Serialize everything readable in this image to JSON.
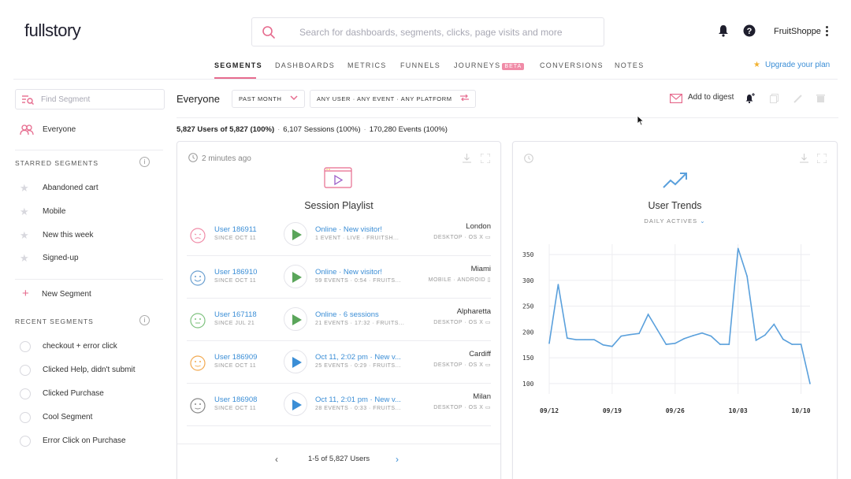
{
  "header": {
    "logo": "fullstory",
    "search_placeholder": "Search for dashboards, segments, clicks, page visits and more",
    "org_name": "FruitShoppe",
    "icons": [
      "bell-icon",
      "help-icon",
      "kebab-menu-icon"
    ]
  },
  "nav": {
    "tabs": [
      {
        "label": "SEGMENTS",
        "active": true
      },
      {
        "label": "DASHBOARDS"
      },
      {
        "label": "METRICS"
      },
      {
        "label": "FUNNELS"
      },
      {
        "label": "JOURNEYS",
        "badge": "BETA"
      },
      {
        "label": "CONVERSIONS"
      },
      {
        "label": "NOTES"
      }
    ],
    "upgrade": "Upgrade your plan"
  },
  "sidebar": {
    "find_placeholder": "Find Segment",
    "everyone": "Everyone",
    "starred_heading": "STARRED SEGMENTS",
    "starred": [
      "Abandoned cart",
      "Mobile",
      "New this week",
      "Signed-up"
    ],
    "new_segment": "New Segment",
    "recent_heading": "RECENT SEGMENTS",
    "recent": [
      "checkout + error click",
      "Clicked Help, didn't submit",
      "Clicked Purchase",
      "Cool Segment",
      "Error Click on Purchase"
    ]
  },
  "toolbar": {
    "segment_title": "Everyone",
    "time_filter": "PAST MONTH",
    "event_filter": "ANY USER · ANY EVENT · ANY PLATFORM",
    "digest_label": "Add to digest"
  },
  "stats": {
    "users": "5,827 Users of 5,827 (100%)",
    "sessions": "6,107 Sessions (100%)",
    "events": "170,280 Events (100%)"
  },
  "playlist": {
    "time": "2 minutes ago",
    "title": "Session Playlist",
    "sessions": [
      {
        "user": "User 186911",
        "since": "SINCE OCT 11",
        "desc": "Online · New visitor!",
        "info": "1 EVENT · LIVE · FRUITSH...",
        "city": "London",
        "platform": "DESKTOP · OS X",
        "mood": "pink",
        "play": "green"
      },
      {
        "user": "User 186910",
        "since": "SINCE OCT 11",
        "desc": "Online · New visitor!",
        "info": "59 EVENTS · 0:54 · FRUITS...",
        "city": "Miami",
        "platform": "MOBILE · ANDROID",
        "mood": "blue",
        "play": "green"
      },
      {
        "user": "User 167118",
        "since": "SINCE JUL 21",
        "desc": "Online · 6 sessions",
        "info": "21 EVENTS · 17:32 · FRUITS...",
        "city": "Alpharetta",
        "platform": "DESKTOP · OS X",
        "mood": "green",
        "play": "green"
      },
      {
        "user": "User 186909",
        "since": "SINCE OCT 11",
        "desc": "Oct 11, 2:02 pm · New v...",
        "info": "25 EVENTS · 0:29 · FRUITS...",
        "city": "Cardiff",
        "platform": "DESKTOP · OS X",
        "mood": "orange",
        "play": "blue"
      },
      {
        "user": "User 186908",
        "since": "SINCE OCT 11",
        "desc": "Oct 11, 2:01 pm · New v...",
        "info": "28 EVENTS · 0:33 · FRUITS...",
        "city": "Milan",
        "platform": "DESKTOP · OS X",
        "mood": "gray",
        "play": "blue"
      }
    ],
    "pager": "1-5 of 5,827 Users"
  },
  "trends": {
    "title": "User Trends",
    "subtitle": "DAILY ACTIVES"
  },
  "colors": {
    "accent_pink": "#e66b8e",
    "link_blue": "#3b8ed6",
    "play_green": "#5aa55a",
    "line_blue": "#5aa0dc"
  },
  "chart_data": {
    "type": "line",
    "title": "User Trends",
    "subtitle": "DAILY ACTIVES",
    "x_tick_labels": [
      "09/12",
      "09/19",
      "09/26",
      "10/03",
      "10/10"
    ],
    "y_tick_labels": [
      "100",
      "150",
      "200",
      "250",
      "300",
      "350"
    ],
    "ylim": [
      80,
      370
    ],
    "series": [
      {
        "x": [
          "09/12",
          "09/13",
          "09/14",
          "09/15",
          "09/16",
          "09/17",
          "09/18",
          "09/19",
          "09/20",
          "09/21",
          "09/22",
          "09/23",
          "09/24",
          "09/25",
          "09/26",
          "09/27",
          "09/28",
          "09/29",
          "09/30",
          "10/01",
          "10/02",
          "10/03",
          "10/04",
          "10/05",
          "10/06",
          "10/07",
          "10/08",
          "10/09",
          "10/10",
          "10/11"
        ],
        "values": [
          178,
          292,
          188,
          185,
          185,
          185,
          175,
          172,
          192,
          195,
          197,
          234,
          205,
          176,
          178,
          187,
          193,
          198,
          192,
          176,
          176,
          362,
          308,
          184,
          194,
          215,
          186,
          176,
          176,
          100
        ]
      }
    ],
    "grid": true
  }
}
